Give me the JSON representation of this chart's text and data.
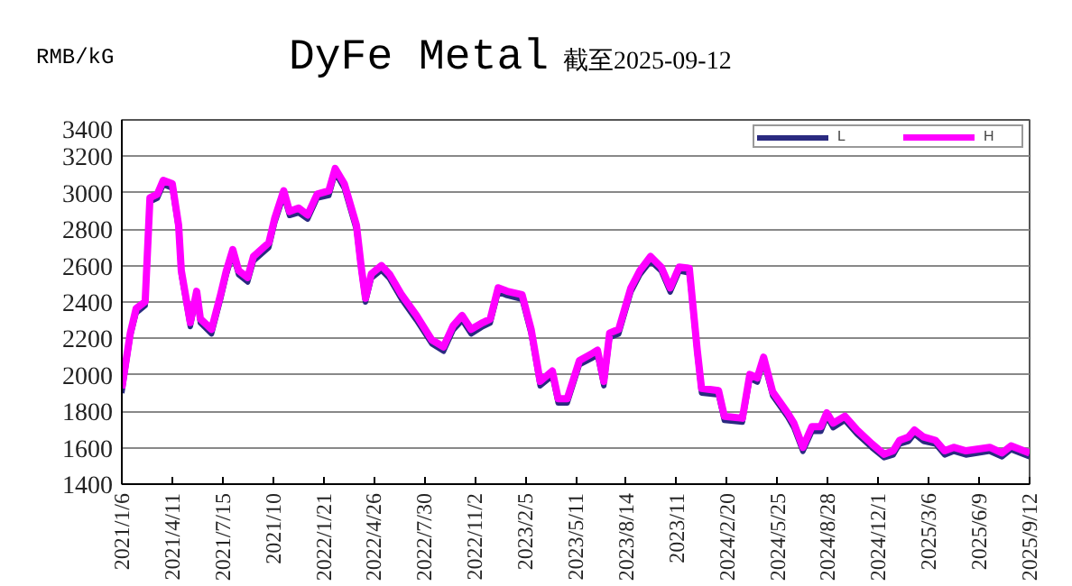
{
  "chart_data": {
    "type": "line",
    "title": "DyFe Metal",
    "subtitle": "截至2025-09-12",
    "ylabel": "RMB/kG",
    "x": [
      "2021-01-06",
      "2021-01-22",
      "2021-02-02",
      "2021-02-19",
      "2021-02-28",
      "2021-03-14",
      "2021-03-25",
      "2021-04-11",
      "2021-04-23",
      "2021-04-28",
      "2021-05-15",
      "2021-05-27",
      "2021-06-03",
      "2021-06-24",
      "2021-07-11",
      "2021-07-22",
      "2021-08-03",
      "2021-08-14",
      "2021-08-31",
      "2021-09-11",
      "2021-10-10",
      "2021-10-21",
      "2021-11-07",
      "2021-11-18",
      "2021-12-05",
      "2021-12-22",
      "2022-01-09",
      "2022-01-31",
      "2022-02-12",
      "2022-03-01",
      "2022-03-24",
      "2022-04-02",
      "2022-04-10",
      "2022-04-21",
      "2022-05-10",
      "2022-05-25",
      "2022-06-17",
      "2022-07-15",
      "2022-08-13",
      "2022-09-04",
      "2022-09-22",
      "2022-10-09",
      "2022-10-26",
      "2022-11-17",
      "2022-12-01",
      "2022-12-16",
      "2023-01-02",
      "2023-01-30",
      "2023-02-16",
      "2023-03-05",
      "2023-03-28",
      "2023-04-08",
      "2023-04-25",
      "2023-05-18",
      "2023-06-10",
      "2023-06-21",
      "2023-07-03",
      "2023-07-14",
      "2023-07-31",
      "2023-08-23",
      "2023-09-09",
      "2023-09-29",
      "2023-10-19",
      "2023-11-05",
      "2023-11-22",
      "2023-12-11",
      "2023-12-26",
      "2024-01-03",
      "2024-02-04",
      "2024-02-15",
      "2024-03-20",
      "2024-04-03",
      "2024-04-17",
      "2024-04-29",
      "2024-05-16",
      "2024-06-13",
      "2024-06-25",
      "2024-07-12",
      "2024-07-29",
      "2024-08-15",
      "2024-08-26",
      "2024-09-07",
      "2024-09-29",
      "2024-10-22",
      "2024-11-19",
      "2024-12-12",
      "2024-12-29",
      "2025-01-10",
      "2025-01-27",
      "2025-02-07",
      "2025-02-24",
      "2025-03-19",
      "2025-04-05",
      "2025-04-22",
      "2025-05-15",
      "2025-06-29",
      "2025-07-22",
      "2025-08-08",
      "2025-09-12"
    ],
    "series": [
      {
        "name": "L",
        "color": "#2a2a80",
        "values": [
          1900,
          2210,
          2340,
          2380,
          2950,
          2970,
          3045,
          3025,
          2800,
          2550,
          2265,
          2435,
          2285,
          2225,
          2415,
          2550,
          2665,
          2550,
          2510,
          2625,
          2700,
          2835,
          2985,
          2875,
          2890,
          2855,
          2970,
          2985,
          3110,
          3025,
          2795,
          2570,
          2400,
          2530,
          2575,
          2530,
          2415,
          2300,
          2170,
          2130,
          2245,
          2300,
          2225,
          2265,
          2285,
          2455,
          2435,
          2415,
          2225,
          1940,
          1995,
          1845,
          1845,
          2055,
          2090,
          2110,
          1940,
          2205,
          2225,
          2455,
          2550,
          2625,
          2570,
          2455,
          2570,
          2560,
          2110,
          1900,
          1890,
          1750,
          1740,
          1980,
          1960,
          2075,
          1885,
          1770,
          1710,
          1580,
          1690,
          1690,
          1770,
          1710,
          1750,
          1675,
          1600,
          1545,
          1560,
          1620,
          1635,
          1675,
          1635,
          1620,
          1560,
          1580,
          1560,
          1580,
          1550,
          1590,
          1550
        ]
      },
      {
        "name": "H",
        "color": "#ff00ff",
        "values": [
          1926,
          2230,
          2364,
          2402,
          2973,
          2992,
          3068,
          3050,
          2821,
          2573,
          2287,
          2459,
          2307,
          2250,
          2440,
          2573,
          2688,
          2573,
          2535,
          2650,
          2726,
          2859,
          3011,
          2897,
          2916,
          2878,
          2992,
          3011,
          3133,
          3050,
          2821,
          2592,
          2421,
          2554,
          2600,
          2554,
          2440,
          2326,
          2192,
          2154,
          2269,
          2326,
          2250,
          2287,
          2307,
          2478,
          2459,
          2440,
          2250,
          1964,
          2021,
          1869,
          1869,
          2078,
          2116,
          2135,
          1964,
          2230,
          2250,
          2478,
          2573,
          2650,
          2592,
          2478,
          2592,
          2585,
          2135,
          1926,
          1914,
          1773,
          1762,
          2002,
          1983,
          2097,
          1907,
          1792,
          1735,
          1602,
          1716,
          1716,
          1792,
          1735,
          1773,
          1697,
          1621,
          1564,
          1583,
          1640,
          1659,
          1697,
          1659,
          1640,
          1583,
          1602,
          1583,
          1602,
          1571,
          1610,
          1571
        ]
      }
    ],
    "xlim": [
      "2021-01-06",
      "2025-09-12"
    ],
    "xticks": [
      {
        "value": "2021-01-06",
        "label": "2021/1/6"
      },
      {
        "value": "2021-04-11",
        "label": "2021/4/11"
      },
      {
        "value": "2021-07-15",
        "label": "2021/7/15"
      },
      {
        "value": "2021-10-18",
        "label": "2021/10"
      },
      {
        "value": "2022-01-21",
        "label": "2022/1/21"
      },
      {
        "value": "2022-04-26",
        "label": "2022/4/26"
      },
      {
        "value": "2022-07-30",
        "label": "2022/7/30"
      },
      {
        "value": "2022-11-02",
        "label": "2022/11/2"
      },
      {
        "value": "2023-02-05",
        "label": "2023/2/5"
      },
      {
        "value": "2023-05-11",
        "label": "2023/5/11"
      },
      {
        "value": "2023-08-14",
        "label": "2023/8/14"
      },
      {
        "value": "2023-11-17",
        "label": "2023/11"
      },
      {
        "value": "2024-02-20",
        "label": "2024/2/20"
      },
      {
        "value": "2024-05-25",
        "label": "2024/5/25"
      },
      {
        "value": "2024-08-28",
        "label": "2024/8/28"
      },
      {
        "value": "2024-12-01",
        "label": "2024/12/1"
      },
      {
        "value": "2025-03-06",
        "label": "2025/3/6"
      },
      {
        "value": "2025-06-09",
        "label": "2025/6/9"
      },
      {
        "value": "2025-09-12",
        "label": "2025/9/12"
      }
    ],
    "ylim": [
      1400,
      3400
    ],
    "yticks": [
      1400,
      1600,
      1800,
      2000,
      2200,
      2400,
      2600,
      2800,
      3000,
      3200,
      3400
    ],
    "grid": "y",
    "legend": "top right",
    "marker": "none",
    "line_style": "solid"
  }
}
